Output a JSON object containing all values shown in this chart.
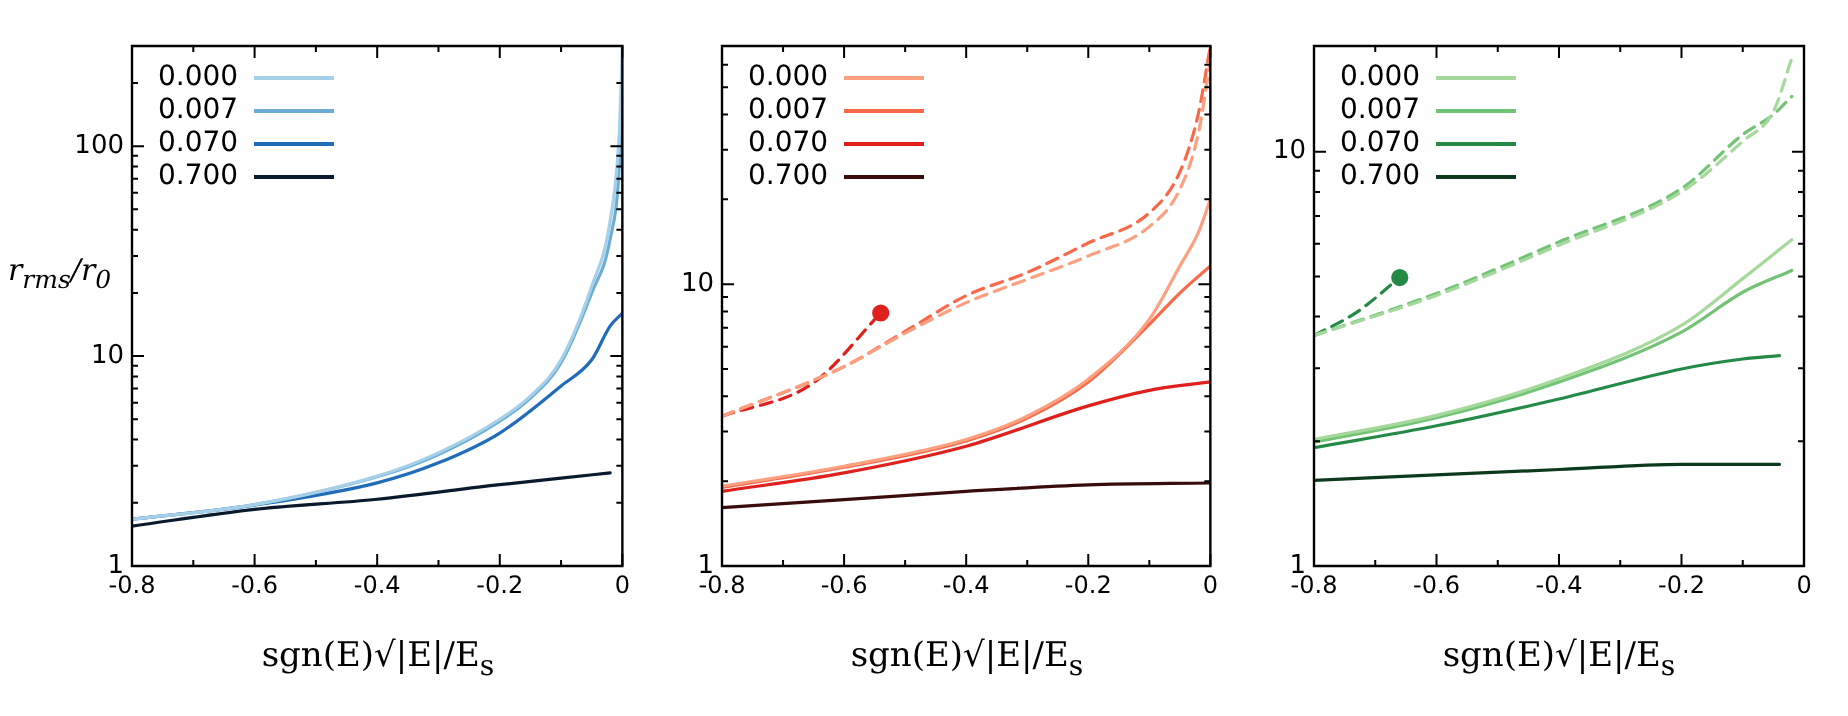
{
  "chart_data": [
    {
      "type": "line",
      "xlabel": "sgn(E)√|E|/E$_{s}$",
      "ylabel": "r$_{rms}$/r$_{0}$",
      "log": "y",
      "grid": false,
      "legend": "top left",
      "marker": "none",
      "xlim": [
        -0.8,
        0
      ],
      "ylim": [
        1,
        300
      ],
      "xticks": [
        -0.8,
        {
          "value": -0.7,
          "label": null
        },
        -0.6,
        {
          "value": -0.5,
          "label": null
        },
        -0.4,
        {
          "value": -0.3,
          "label": null
        },
        -0.2,
        {
          "value": -0.1,
          "label": null
        },
        0
      ],
      "yticks": [
        1,
        {
          "value": 2,
          "label": null
        },
        {
          "value": 3,
          "label": null
        },
        {
          "value": 4,
          "label": null
        },
        {
          "value": 5,
          "label": null
        },
        {
          "value": 6,
          "label": null
        },
        {
          "value": 7,
          "label": null
        },
        {
          "value": 8,
          "label": null
        },
        {
          "value": 9,
          "label": null
        },
        10,
        {
          "value": 20,
          "label": null
        },
        {
          "value": 30,
          "label": null
        },
        {
          "value": 40,
          "label": null
        },
        {
          "value": 50,
          "label": null
        },
        {
          "value": 60,
          "label": null
        },
        {
          "value": 70,
          "label": null
        },
        {
          "value": 80,
          "label": null
        },
        {
          "value": 90,
          "label": null
        },
        100,
        {
          "value": 200,
          "label": null
        },
        {
          "value": 300,
          "label": null
        }
      ],
      "series": [
        {
          "name": "0.000",
          "color": "#a6cfe8",
          "line_style": "solid",
          "x": [
            -0.8,
            -0.6,
            -0.4,
            -0.3,
            -0.2,
            -0.15,
            -0.1,
            -0.05,
            -0.02,
            -0.005,
            0
          ],
          "values": [
            1.67,
            1.96,
            2.68,
            3.46,
            5.0,
            6.45,
            9.6,
            21.5,
            44,
            116,
            300
          ]
        },
        {
          "name": "0.007",
          "color": "#6aaed8",
          "line_style": "solid",
          "x": [
            -0.8,
            -0.6,
            -0.4,
            -0.3,
            -0.2,
            -0.15,
            -0.1,
            -0.05,
            -0.02,
            -0.005,
            0
          ],
          "values": [
            1.67,
            1.96,
            2.66,
            3.4,
            4.9,
            6.3,
            9.3,
            20,
            36,
            80,
            200
          ]
        },
        {
          "name": "0.070",
          "color": "#1f6cb8",
          "line_style": "solid",
          "x": [
            -0.8,
            -0.6,
            -0.4,
            -0.3,
            -0.2,
            -0.1,
            -0.05,
            -0.02,
            0
          ],
          "values": [
            1.67,
            1.95,
            2.49,
            3.1,
            4.3,
            7.2,
            9.6,
            13.9,
            16
          ]
        },
        {
          "name": "0.700",
          "color": "#0a1a2e",
          "line_style": "solid",
          "x": [
            -0.8,
            -0.6,
            -0.4,
            -0.2,
            -0.1,
            -0.02
          ],
          "values": [
            1.55,
            1.86,
            2.08,
            2.44,
            2.62,
            2.78
          ]
        }
      ]
    },
    {
      "type": "line",
      "xlabel": "sgn(E)√|E|/E$_{s}$",
      "log": "y",
      "grid": false,
      "legend": "top left",
      "marker": "none",
      "xlim": [
        -0.8,
        0
      ],
      "ylim": [
        1,
        70
      ],
      "xticks": [
        -0.8,
        {
          "value": -0.7,
          "label": null
        },
        -0.6,
        {
          "value": -0.5,
          "label": null
        },
        -0.4,
        {
          "value": -0.3,
          "label": null
        },
        -0.2,
        {
          "value": -0.1,
          "label": null
        },
        0
      ],
      "yticks": [
        1,
        {
          "value": 2,
          "label": null
        },
        {
          "value": 3,
          "label": null
        },
        {
          "value": 4,
          "label": null
        },
        {
          "value": 5,
          "label": null
        },
        {
          "value": 6,
          "label": null
        },
        {
          "value": 7,
          "label": null
        },
        {
          "value": 8,
          "label": null
        },
        {
          "value": 9,
          "label": null
        },
        10,
        {
          "value": 20,
          "label": null
        },
        {
          "value": 30,
          "label": null
        },
        {
          "value": 40,
          "label": null
        },
        {
          "value": 50,
          "label": null
        },
        {
          "value": 60,
          "label": null
        },
        {
          "value": 70,
          "label": null
        }
      ],
      "series": [
        {
          "name": "0.000",
          "color": "#fca080",
          "line_style": "solid",
          "x": [
            -0.8,
            -0.6,
            -0.4,
            -0.3,
            -0.2,
            -0.1,
            -0.05,
            -0.02,
            0
          ],
          "values": [
            1.92,
            2.26,
            2.81,
            3.4,
            4.6,
            7.5,
            11.6,
            15.2,
            20
          ]
        },
        {
          "name": "0.007",
          "color": "#f8694a",
          "line_style": "solid",
          "x": [
            -0.8,
            -0.6,
            -0.4,
            -0.3,
            -0.2,
            -0.1,
            -0.05,
            0
          ],
          "values": [
            1.9,
            2.24,
            2.78,
            3.35,
            4.5,
            7.2,
            9.3,
            11.6
          ]
        },
        {
          "name": "0.070",
          "color": "#e0201c",
          "line_style": "solid",
          "x": [
            -0.8,
            -0.6,
            -0.4,
            -0.2,
            -0.1,
            0
          ],
          "values": [
            1.84,
            2.14,
            2.66,
            3.7,
            4.2,
            4.5
          ]
        },
        {
          "name": "0.700",
          "color": "#3a0c0c",
          "line_style": "solid",
          "x": [
            -0.8,
            -0.6,
            -0.4,
            -0.2,
            0
          ],
          "values": [
            1.61,
            1.72,
            1.84,
            1.94,
            1.97
          ]
        },
        {
          "color": "#fca080",
          "line_style": "dashed",
          "x": [
            -0.8,
            -0.6,
            -0.5,
            -0.4,
            -0.3,
            -0.2,
            -0.1,
            -0.05,
            -0.02,
            0
          ],
          "values": [
            3.4,
            5.1,
            6.7,
            8.6,
            10.4,
            12.6,
            16,
            21.7,
            34,
            62
          ]
        },
        {
          "color": "#f8694a",
          "line_style": "dashed",
          "x": [
            -0.8,
            -0.6,
            -0.5,
            -0.4,
            -0.3,
            -0.2,
            -0.1,
            -0.05,
            -0.02,
            0
          ],
          "values": [
            3.4,
            5.1,
            6.8,
            9.1,
            11,
            14,
            17.9,
            25,
            40,
            70
          ]
        },
        {
          "color": "#e0201c",
          "line_style": "dashed",
          "x": [
            -0.8,
            -0.65,
            -0.54
          ],
          "values": [
            3.4,
            4.47,
            7.9
          ]
        },
        {
          "type": "scatter",
          "marker": "circle",
          "color": "#e0201c",
          "x": [
            -0.54
          ],
          "values": [
            7.9
          ]
        }
      ]
    },
    {
      "type": "line",
      "xlabel": "sgn(E)√|E|/E$_{s}$",
      "log": "y",
      "grid": false,
      "legend": "top left",
      "marker": "none",
      "xlim": [
        -0.8,
        0
      ],
      "ylim": [
        1,
        18
      ],
      "xticks": [
        -0.8,
        {
          "value": -0.7,
          "label": null
        },
        -0.6,
        {
          "value": -0.5,
          "label": null
        },
        -0.4,
        {
          "value": -0.3,
          "label": null
        },
        -0.2,
        {
          "value": -0.1,
          "label": null
        },
        0
      ],
      "yticks": [
        1,
        {
          "value": 2,
          "label": null
        },
        {
          "value": 3,
          "label": null
        },
        {
          "value": 4,
          "label": null
        },
        {
          "value": 5,
          "label": null
        },
        {
          "value": 6,
          "label": null
        },
        {
          "value": 7,
          "label": null
        },
        {
          "value": 8,
          "label": null
        },
        {
          "value": 9,
          "label": null
        },
        10
      ],
      "series": [
        {
          "name": "0.000",
          "color": "#a5d99c",
          "line_style": "solid",
          "x": [
            -0.8,
            -0.6,
            -0.4,
            -0.2,
            -0.1,
            -0.02
          ],
          "values": [
            2.02,
            2.31,
            2.83,
            3.81,
            4.94,
            6.13
          ]
        },
        {
          "name": "0.007",
          "color": "#72c375",
          "line_style": "solid",
          "x": [
            -0.8,
            -0.6,
            -0.4,
            -0.2,
            -0.1,
            -0.02
          ],
          "values": [
            1.99,
            2.28,
            2.78,
            3.67,
            4.58,
            5.17
          ]
        },
        {
          "name": "0.070",
          "color": "#248a46",
          "line_style": "solid",
          "x": [
            -0.8,
            -0.6,
            -0.4,
            -0.2,
            -0.1,
            -0.04
          ],
          "values": [
            1.93,
            2.18,
            2.53,
            2.99,
            3.16,
            3.22
          ]
        },
        {
          "name": "0.700",
          "color": "#0c3a1c",
          "line_style": "solid",
          "x": [
            -0.8,
            -0.4,
            -0.2,
            -0.04
          ],
          "values": [
            1.61,
            1.71,
            1.76,
            1.76
          ]
        },
        {
          "color": "#a5d99c",
          "line_style": "dashed",
          "x": [
            -0.8,
            -0.6,
            -0.4,
            -0.2,
            -0.1,
            -0.05,
            -0.02
          ],
          "values": [
            3.6,
            4.5,
            5.95,
            8.0,
            10.6,
            12.5,
            16.8
          ]
        },
        {
          "color": "#72c375",
          "line_style": "dashed",
          "x": [
            -0.8,
            -0.6,
            -0.4,
            -0.2,
            -0.1,
            -0.05,
            -0.02
          ],
          "values": [
            3.6,
            4.55,
            6.06,
            8.15,
            11,
            12.3,
            13.6
          ]
        },
        {
          "color": "#248a46",
          "line_style": "dashed",
          "x": [
            -0.8,
            -0.73,
            -0.66
          ],
          "values": [
            3.6,
            4.1,
            4.97
          ]
        },
        {
          "type": "scatter",
          "marker": "circle",
          "color": "#248a46",
          "x": [
            -0.66
          ],
          "values": [
            4.97
          ]
        }
      ]
    }
  ]
}
